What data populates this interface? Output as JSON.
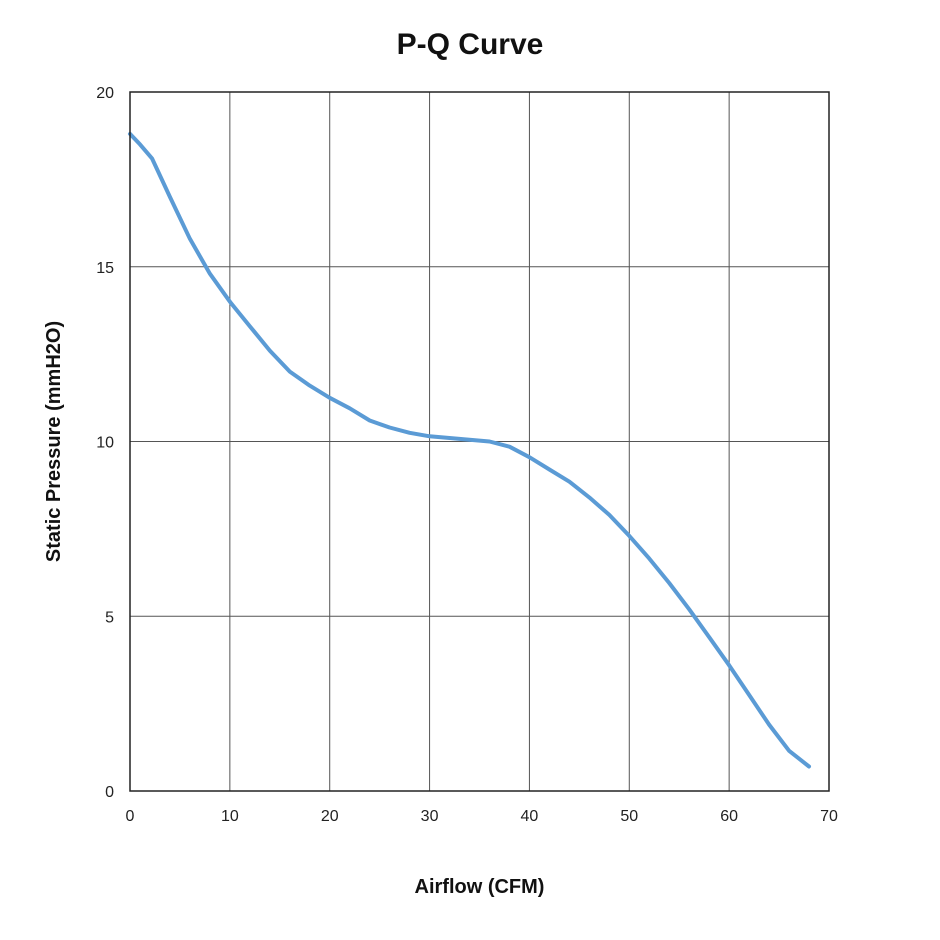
{
  "chart_data": {
    "type": "line",
    "title": "P-Q Curve",
    "xlabel": "Airflow (CFM)",
    "ylabel": "Static Pressure (mmH2O)",
    "xlim": [
      0,
      70
    ],
    "ylim": [
      0,
      20
    ],
    "xticks": [
      0,
      10,
      20,
      30,
      40,
      50,
      60,
      70
    ],
    "yticks": [
      0,
      5,
      10,
      15,
      20
    ],
    "grid": true,
    "line_color": "#5b9bd5",
    "series": [
      {
        "x": [
          0,
          1,
          2.2,
          4,
          6,
          8,
          10,
          12,
          14,
          16,
          18,
          20,
          22,
          24,
          26,
          28,
          30,
          32,
          34,
          36,
          38,
          40,
          42,
          44,
          46,
          48,
          50,
          52,
          54,
          56,
          58,
          60,
          62,
          64,
          66,
          68
        ],
        "y": [
          18.8,
          18.5,
          18.1,
          17.0,
          15.8,
          14.8,
          14.0,
          13.3,
          12.6,
          12.0,
          11.6,
          11.25,
          10.95,
          10.6,
          10.4,
          10.25,
          10.15,
          10.1,
          10.05,
          10.0,
          9.85,
          9.55,
          9.2,
          8.85,
          8.4,
          7.9,
          7.3,
          6.65,
          5.95,
          5.2,
          4.4,
          3.6,
          2.75,
          1.9,
          1.15,
          0.7
        ]
      }
    ]
  }
}
